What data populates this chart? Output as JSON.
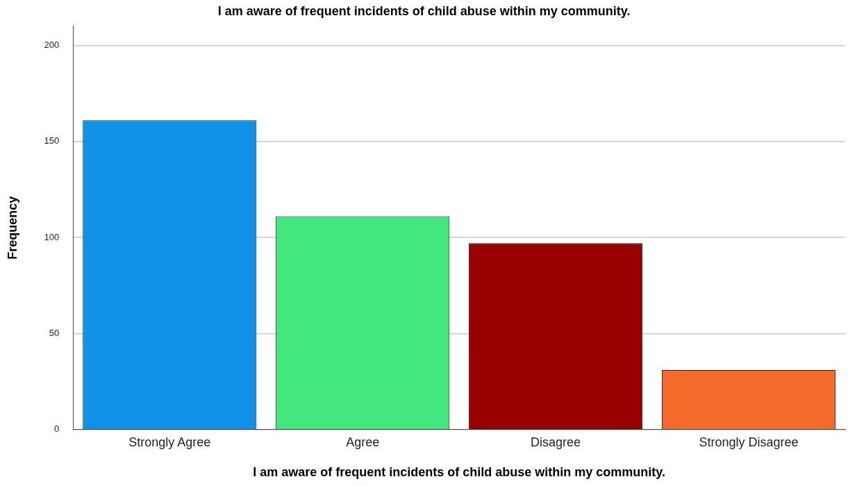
{
  "chart_data": {
    "type": "bar",
    "title": "I am aware of frequent incidents of child abuse within my community.",
    "xlabel": "I am aware of frequent incidents of child abuse within my community.",
    "ylabel": "Frequency",
    "categories": [
      "Strongly Agree",
      "Agree",
      "Disagree",
      "Strongly Disagree"
    ],
    "values": [
      161,
      111,
      97,
      31
    ],
    "colors": [
      "#1192e8",
      "#42e87e",
      "#990000",
      "#f36a2a"
    ],
    "ylim": [
      0,
      210
    ],
    "yticks": [
      0,
      50,
      100,
      150,
      200
    ],
    "grid": "y",
    "legend": false
  }
}
